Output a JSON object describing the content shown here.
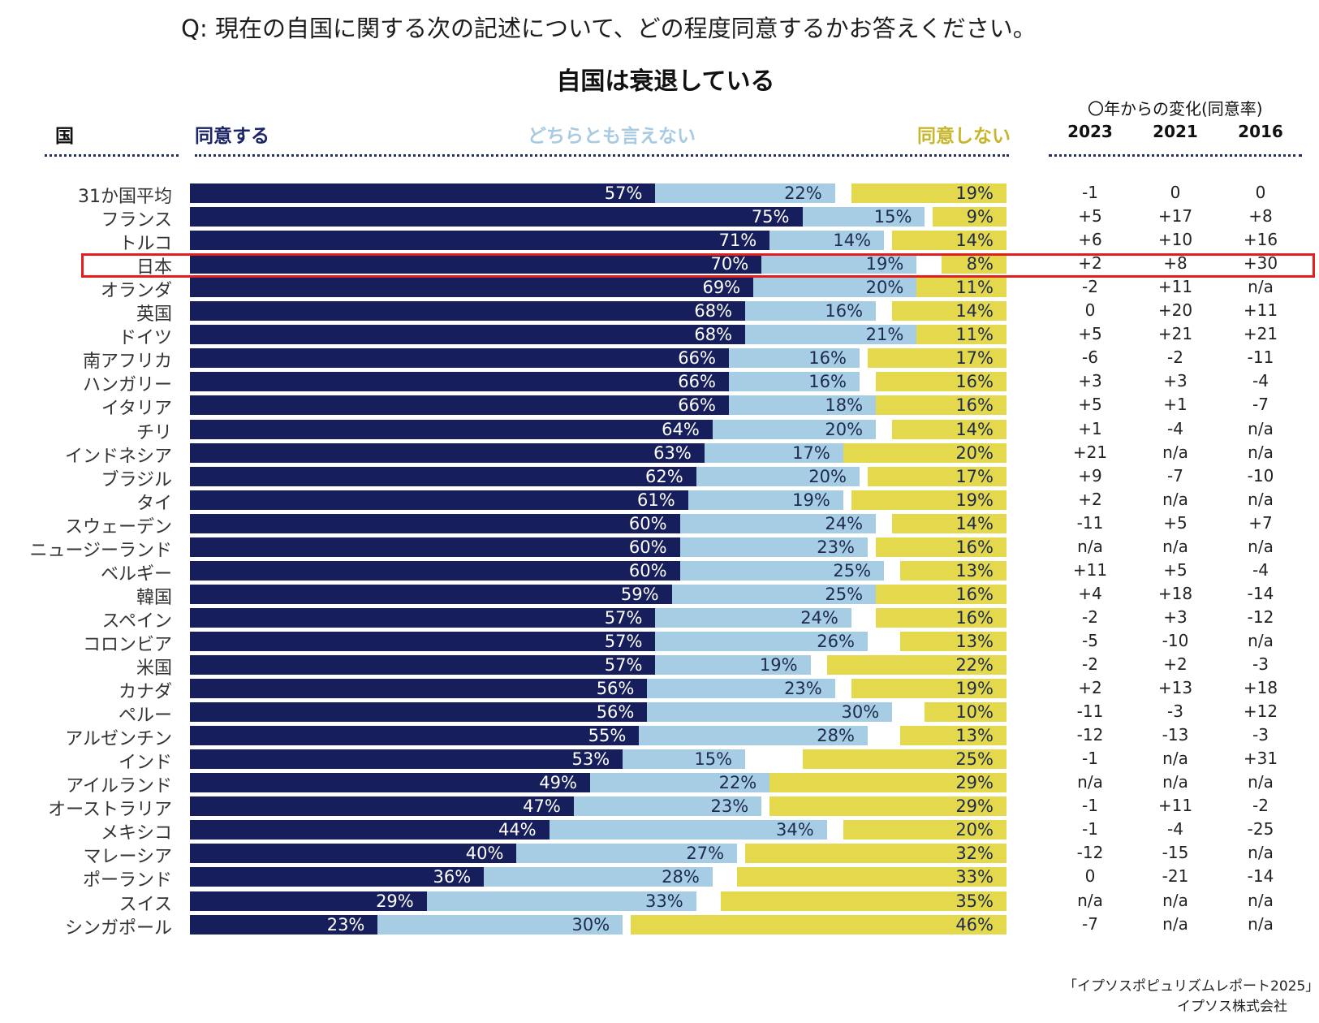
{
  "question": "Q: 現在の自国に関する次の記述について、どの程度同意するかお答えください。",
  "headers": {
    "country": "国",
    "agree": "同意する",
    "neutral": "どちらとも言えない",
    "disagree": "同意しない",
    "change": "〇年からの変化(同意率)"
  },
  "colors": {
    "agree": "#161e5c",
    "neutral": "#a6cde4",
    "disagree": "#e4d94c",
    "highlight": "#e41e1e"
  },
  "highlighted_country": "日本",
  "source": {
    "line1": "「イプソスポピュリズムレポート2025」",
    "line2": "イプソス株式会社"
  },
  "chart_data": {
    "type": "bar",
    "stacked": true,
    "orientation": "horizontal",
    "title": "自国は衰退している",
    "xlim": [
      0,
      100
    ],
    "categories": [
      "31か国平均",
      "フランス",
      "トルコ",
      "日本",
      "オランダ",
      "英国",
      "ドイツ",
      "南アフリカ",
      "ハンガリー",
      "イタリア",
      "チリ",
      "インドネシア",
      "ブラジル",
      "タイ",
      "スウェーデン",
      "ニュージーランド",
      "ベルギー",
      "韓国",
      "スペイン",
      "コロンビア",
      "米国",
      "カナダ",
      "ペルー",
      "アルゼンチン",
      "インド",
      "アイルランド",
      "オーストラリア",
      "メキシコ",
      "マレーシア",
      "ポーランド",
      "スイス",
      "シンガポール"
    ],
    "series": [
      {
        "name": "同意する",
        "values": [
          57,
          75,
          71,
          70,
          69,
          68,
          68,
          66,
          66,
          66,
          64,
          63,
          62,
          61,
          60,
          60,
          60,
          59,
          57,
          57,
          57,
          56,
          56,
          55,
          53,
          49,
          47,
          44,
          40,
          36,
          29,
          23
        ]
      },
      {
        "name": "どちらとも言えない",
        "values": [
          22,
          15,
          14,
          19,
          20,
          16,
          21,
          16,
          16,
          18,
          20,
          17,
          20,
          19,
          24,
          23,
          25,
          25,
          24,
          26,
          19,
          23,
          30,
          28,
          15,
          22,
          23,
          34,
          27,
          28,
          33,
          30
        ]
      },
      {
        "name": "同意しない",
        "values": [
          19,
          9,
          14,
          8,
          11,
          14,
          11,
          17,
          16,
          16,
          14,
          20,
          17,
          19,
          14,
          16,
          13,
          16,
          16,
          13,
          22,
          19,
          10,
          13,
          25,
          29,
          29,
          20,
          32,
          33,
          35,
          46
        ]
      }
    ],
    "change_years": [
      "2023",
      "2021",
      "2016"
    ],
    "change": [
      [
        "-1",
        "0",
        "0"
      ],
      [
        "+5",
        "+17",
        "+8"
      ],
      [
        "+6",
        "+10",
        "+16"
      ],
      [
        "+2",
        "+8",
        "+30"
      ],
      [
        "-2",
        "+11",
        "n/a"
      ],
      [
        "0",
        "+20",
        "+11"
      ],
      [
        "+5",
        "+21",
        "+21"
      ],
      [
        "-6",
        "-2",
        "-11"
      ],
      [
        "+3",
        "+3",
        "-4"
      ],
      [
        "+5",
        "+1",
        "-7"
      ],
      [
        "+1",
        "-4",
        "n/a"
      ],
      [
        "+21",
        "n/a",
        "n/a"
      ],
      [
        "+9",
        "-7",
        "-10"
      ],
      [
        "+2",
        "n/a",
        "n/a"
      ],
      [
        "-11",
        "+5",
        "+7"
      ],
      [
        "n/a",
        "n/a",
        "n/a"
      ],
      [
        "+11",
        "+5",
        "-4"
      ],
      [
        "+4",
        "+18",
        "-14"
      ],
      [
        "-2",
        "+3",
        "-12"
      ],
      [
        "-5",
        "-10",
        "n/a"
      ],
      [
        "-2",
        "+2",
        "-3"
      ],
      [
        "+2",
        "+13",
        "+18"
      ],
      [
        "-11",
        "-3",
        "+12"
      ],
      [
        "-12",
        "-13",
        "-3"
      ],
      [
        "-1",
        "n/a",
        "+31"
      ],
      [
        "n/a",
        "n/a",
        "n/a"
      ],
      [
        "-1",
        "+11",
        "-2"
      ],
      [
        "-1",
        "-4",
        "-25"
      ],
      [
        "-12",
        "-15",
        "n/a"
      ],
      [
        "0",
        "-21",
        "-14"
      ],
      [
        "n/a",
        "n/a",
        "n/a"
      ],
      [
        "-7",
        "n/a",
        "n/a"
      ]
    ]
  }
}
